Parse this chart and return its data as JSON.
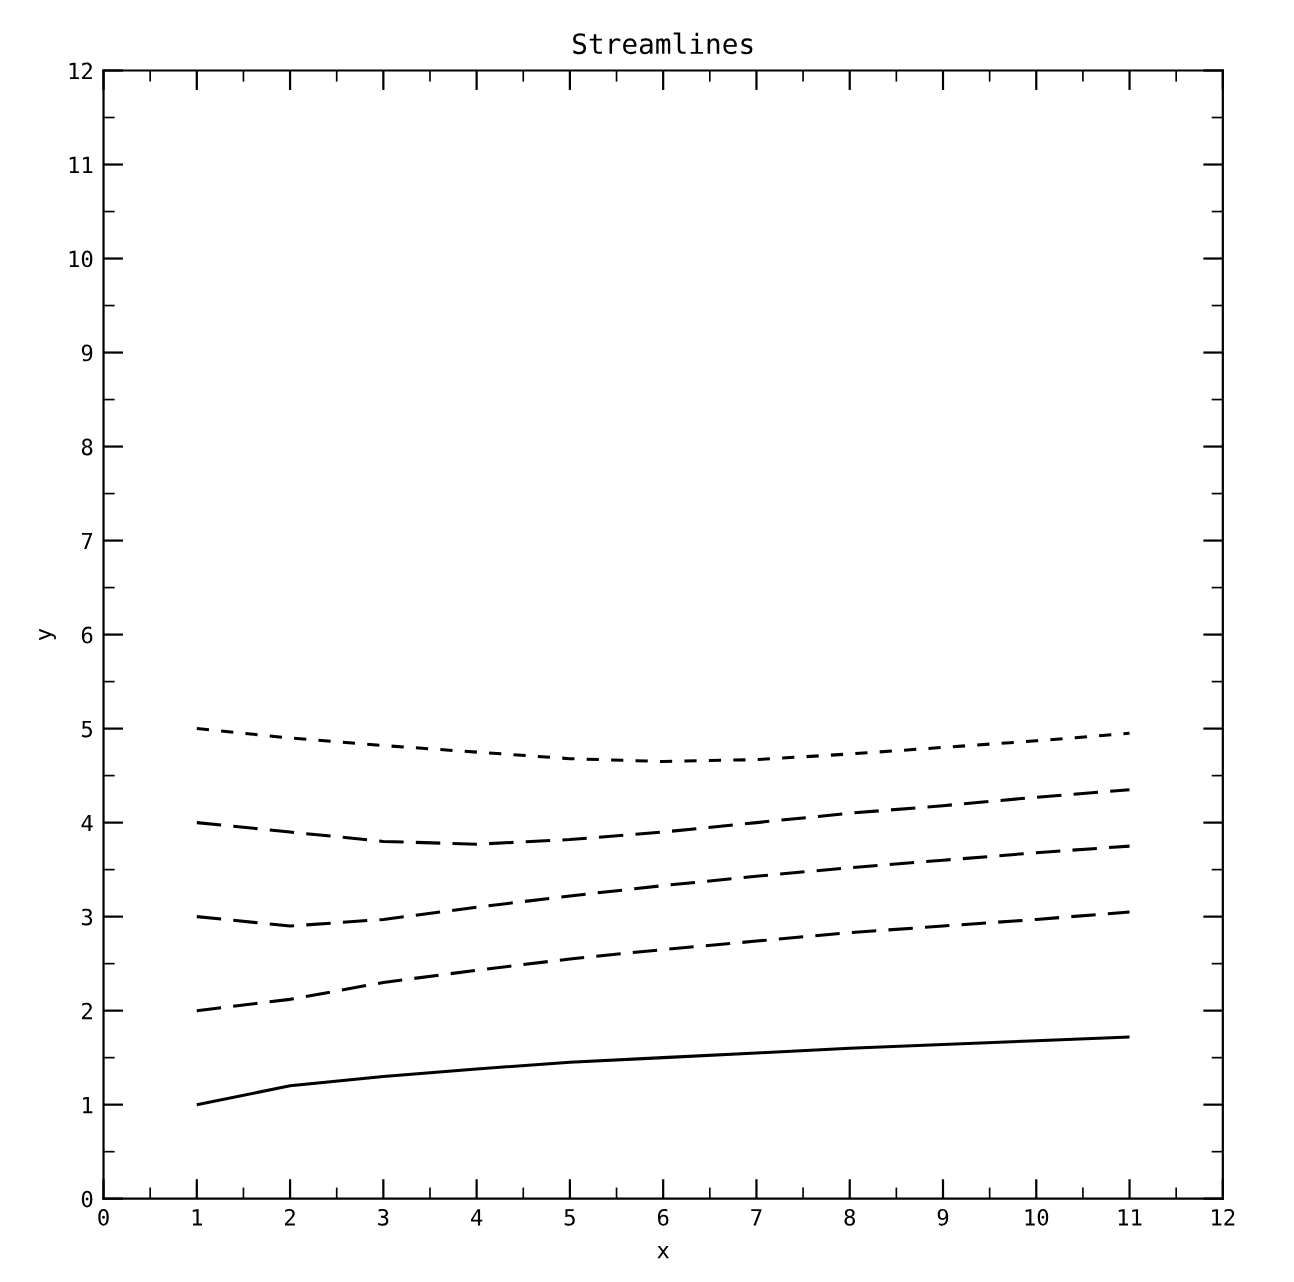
{
  "chart_data": {
    "type": "line",
    "title": "Streamlines",
    "xlabel": "x",
    "ylabel": "y",
    "x": [
      1,
      2,
      3,
      4,
      5,
      6,
      7,
      8,
      9,
      10,
      11
    ],
    "series": [
      {
        "color": "#000000",
        "line_style": "solid",
        "values": [
          1.0,
          1.2,
          1.3,
          1.38,
          1.45,
          1.5,
          1.55,
          1.6,
          1.64,
          1.68,
          1.72
        ]
      },
      {
        "color": "#000000",
        "line_style": "dashed",
        "values": [
          2.0,
          2.12,
          2.3,
          2.43,
          2.55,
          2.65,
          2.74,
          2.83,
          2.9,
          2.97,
          3.05
        ]
      },
      {
        "color": "#000000",
        "line_style": "dashed",
        "values": [
          3.0,
          2.9,
          2.97,
          3.1,
          3.22,
          3.33,
          3.43,
          3.52,
          3.6,
          3.68,
          3.75
        ]
      },
      {
        "color": "#000000",
        "line_style": "dashed",
        "values": [
          4.0,
          3.9,
          3.8,
          3.77,
          3.82,
          3.9,
          4.0,
          4.1,
          4.18,
          4.27,
          4.35
        ]
      },
      {
        "color": "#000000",
        "line_style": "dotted",
        "values": [
          5.0,
          4.9,
          4.82,
          4.75,
          4.68,
          4.65,
          4.67,
          4.73,
          4.8,
          4.87,
          4.95
        ]
      }
    ],
    "xlim": [
      0,
      12
    ],
    "ylim": [
      0,
      12
    ],
    "xticks": [
      0,
      1,
      2,
      3,
      4,
      5,
      6,
      7,
      8,
      9,
      10,
      11,
      12
    ],
    "yticks": [
      0,
      1,
      2,
      3,
      4,
      5,
      6,
      7,
      8,
      9,
      10,
      11,
      12
    ],
    "grid": false,
    "legend": false,
    "marker": "none"
  }
}
